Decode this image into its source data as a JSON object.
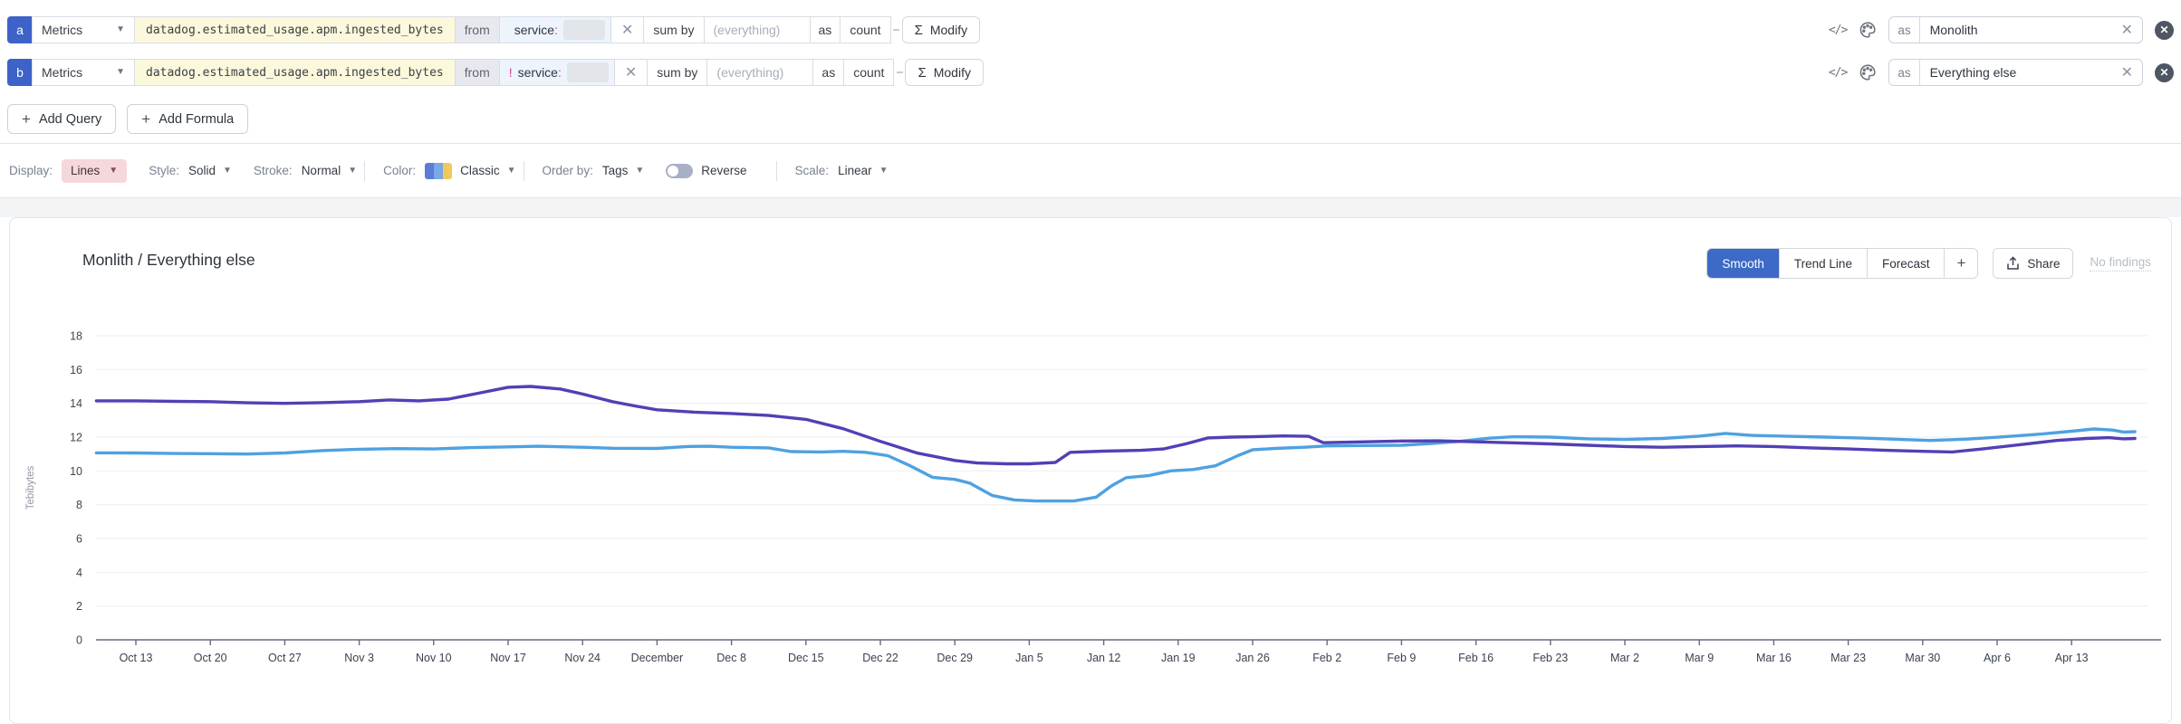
{
  "colors": {
    "badge_blue": "#3D63C8",
    "active_button_blue": "#3D6AC6",
    "lines_chip_pink": "#F5D8DC",
    "metric_field_yellow": "#FCF8DC",
    "series_monolith_purple": "#5140B5",
    "series_everything_blue": "#4FA1E0"
  },
  "queries": {
    "rows": [
      {
        "id": "a",
        "source": "Metrics",
        "metric": "datadog.estimated_usage.apm.ingested_bytes",
        "from": "from",
        "filter_prefix": "",
        "filter_key": "service",
        "filter_colon": ":",
        "clear_x": "✕",
        "agg": "sum by",
        "agg_placeholder": "(everything)",
        "as": "as",
        "as_value": "count",
        "modify_sigma": "Σ",
        "modify": "Modify",
        "code_icon": "</>",
        "alias_prefix": "as",
        "alias": "Monolith",
        "alias_clear": "✕",
        "remove": "✕"
      },
      {
        "id": "b",
        "source": "Metrics",
        "metric": "datadog.estimated_usage.apm.ingested_bytes",
        "from": "from",
        "filter_prefix": "!",
        "filter_key": "service",
        "filter_colon": ":",
        "clear_x": "✕",
        "agg": "sum by",
        "agg_placeholder": "(everything)",
        "as": "as",
        "as_value": "count",
        "modify_sigma": "Σ",
        "modify": "Modify",
        "code_icon": "</>",
        "alias_prefix": "as",
        "alias": "Everything else",
        "alias_clear": "✕",
        "remove": "✕"
      }
    ],
    "add_query": "Add Query",
    "add_formula": "Add Formula",
    "plus": "+"
  },
  "options": {
    "display_label": "Display:",
    "display_value": "Lines",
    "style_label": "Style:",
    "style_value": "Solid",
    "stroke_label": "Stroke:",
    "stroke_value": "Normal",
    "color_label": "Color:",
    "color_value": "Classic",
    "order_label": "Order by:",
    "order_value": "Tags",
    "reverse_label": "Reverse",
    "reverse_state": "off",
    "scale_label": "Scale:",
    "scale_value": "Linear"
  },
  "chart": {
    "title": "Monlith / Everything else",
    "buttons": {
      "smooth": "Smooth",
      "trend": "Trend Line",
      "forecast": "Forecast",
      "plus": "+"
    },
    "active_button": "Smooth",
    "share": "Share",
    "no_findings": "No findings"
  },
  "chart_data": {
    "type": "line",
    "title": "Monlith / Everything else",
    "ylabel": "Tebibytes",
    "ylim": [
      0,
      18
    ],
    "y_ticks": [
      0,
      2,
      4,
      6,
      8,
      10,
      12,
      14,
      16,
      18
    ],
    "grid": "horizontal",
    "legend": "none",
    "x_ticks": [
      "Oct 13",
      "Oct 20",
      "Oct 27",
      "Nov 3",
      "Nov 10",
      "Nov 17",
      "Nov 24",
      "December",
      "Dec 8",
      "Dec 15",
      "Dec 22",
      "Dec 29",
      "Jan 5",
      "Jan 12",
      "Jan 19",
      "Jan 26",
      "Feb 2",
      "Feb 9",
      "Feb 16",
      "Feb 23",
      "Mar 2",
      "Mar 9",
      "Mar 16",
      "Mar 23",
      "Mar 30",
      "Apr 6",
      "Apr 13"
    ],
    "x_unit": "weeks since Oct 13",
    "series": [
      {
        "name": "Everything else",
        "color": "#4FA1E0",
        "points": [
          [
            -0.53,
            11.07
          ],
          [
            0,
            11.06
          ],
          [
            0.5,
            11.03
          ],
          [
            1,
            11.02
          ],
          [
            1.5,
            11.0
          ],
          [
            2,
            11.06
          ],
          [
            2.5,
            11.2
          ],
          [
            3,
            11.28
          ],
          [
            3.5,
            11.32
          ],
          [
            4,
            11.3
          ],
          [
            4.5,
            11.38
          ],
          [
            5,
            11.42
          ],
          [
            5.4,
            11.46
          ],
          [
            6,
            11.4
          ],
          [
            6.4,
            11.34
          ],
          [
            7,
            11.33
          ],
          [
            7.4,
            11.44
          ],
          [
            7.7,
            11.46
          ],
          [
            8,
            11.4
          ],
          [
            8.5,
            11.36
          ],
          [
            8.8,
            11.14
          ],
          [
            9.2,
            11.12
          ],
          [
            9.5,
            11.16
          ],
          [
            9.8,
            11.1
          ],
          [
            10.1,
            10.9
          ],
          [
            10.4,
            10.3
          ],
          [
            10.7,
            9.62
          ],
          [
            11,
            9.5
          ],
          [
            11.2,
            9.28
          ],
          [
            11.5,
            8.55
          ],
          [
            11.8,
            8.28
          ],
          [
            12.1,
            8.22
          ],
          [
            12.6,
            8.22
          ],
          [
            12.9,
            8.45
          ],
          [
            13.1,
            9.1
          ],
          [
            13.3,
            9.6
          ],
          [
            13.6,
            9.72
          ],
          [
            13.9,
            10.0
          ],
          [
            14.2,
            10.08
          ],
          [
            14.5,
            10.3
          ],
          [
            14.8,
            10.9
          ],
          [
            15,
            11.25
          ],
          [
            15.3,
            11.33
          ],
          [
            15.7,
            11.4
          ],
          [
            16,
            11.48
          ],
          [
            16.5,
            11.5
          ],
          [
            17,
            11.52
          ],
          [
            17.4,
            11.62
          ],
          [
            17.8,
            11.76
          ],
          [
            18.2,
            11.94
          ],
          [
            18.5,
            12.02
          ],
          [
            19,
            12.0
          ],
          [
            19.5,
            11.9
          ],
          [
            20,
            11.86
          ],
          [
            20.5,
            11.92
          ],
          [
            21,
            12.06
          ],
          [
            21.35,
            12.22
          ],
          [
            21.7,
            12.1
          ],
          [
            22.2,
            12.05
          ],
          [
            22.7,
            12.0
          ],
          [
            23.2,
            11.94
          ],
          [
            23.7,
            11.86
          ],
          [
            24.1,
            11.8
          ],
          [
            24.6,
            11.88
          ],
          [
            25.1,
            12.02
          ],
          [
            25.6,
            12.18
          ],
          [
            26,
            12.35
          ],
          [
            26.3,
            12.48
          ],
          [
            26.55,
            12.42
          ],
          [
            26.7,
            12.3
          ],
          [
            26.85,
            12.32
          ]
        ]
      },
      {
        "name": "Monolith",
        "color": "#5140B5",
        "points": [
          [
            -0.53,
            14.15
          ],
          [
            0,
            14.15
          ],
          [
            0.5,
            14.12
          ],
          [
            1,
            14.1
          ],
          [
            1.5,
            14.03
          ],
          [
            2,
            14.0
          ],
          [
            2.5,
            14.04
          ],
          [
            3,
            14.1
          ],
          [
            3.4,
            14.2
          ],
          [
            3.8,
            14.15
          ],
          [
            4.2,
            14.25
          ],
          [
            4.6,
            14.6
          ],
          [
            5,
            14.95
          ],
          [
            5.3,
            15.0
          ],
          [
            5.7,
            14.85
          ],
          [
            6,
            14.55
          ],
          [
            6.4,
            14.1
          ],
          [
            6.7,
            13.85
          ],
          [
            7,
            13.62
          ],
          [
            7.5,
            13.48
          ],
          [
            8,
            13.4
          ],
          [
            8.5,
            13.28
          ],
          [
            9,
            13.05
          ],
          [
            9.5,
            12.5
          ],
          [
            10,
            11.75
          ],
          [
            10.5,
            11.05
          ],
          [
            11,
            10.62
          ],
          [
            11.3,
            10.47
          ],
          [
            11.7,
            10.42
          ],
          [
            12,
            10.42
          ],
          [
            12.35,
            10.5
          ],
          [
            12.55,
            11.1
          ],
          [
            13,
            11.17
          ],
          [
            13.5,
            11.22
          ],
          [
            13.8,
            11.3
          ],
          [
            14.1,
            11.6
          ],
          [
            14.4,
            11.95
          ],
          [
            14.7,
            12.0
          ],
          [
            15,
            12.02
          ],
          [
            15.4,
            12.07
          ],
          [
            15.75,
            12.05
          ],
          [
            15.95,
            11.67
          ],
          [
            16.3,
            11.7
          ],
          [
            17,
            11.77
          ],
          [
            17.5,
            11.78
          ],
          [
            18,
            11.72
          ],
          [
            18.5,
            11.66
          ],
          [
            19,
            11.6
          ],
          [
            19.5,
            11.52
          ],
          [
            20,
            11.44
          ],
          [
            20.5,
            11.4
          ],
          [
            21,
            11.44
          ],
          [
            21.5,
            11.48
          ],
          [
            22,
            11.44
          ],
          [
            22.5,
            11.36
          ],
          [
            23,
            11.3
          ],
          [
            23.5,
            11.22
          ],
          [
            24,
            11.16
          ],
          [
            24.4,
            11.12
          ],
          [
            24.8,
            11.3
          ],
          [
            25.3,
            11.55
          ],
          [
            25.8,
            11.8
          ],
          [
            26.2,
            11.92
          ],
          [
            26.5,
            11.97
          ],
          [
            26.7,
            11.9
          ],
          [
            26.85,
            11.92
          ]
        ]
      }
    ]
  }
}
